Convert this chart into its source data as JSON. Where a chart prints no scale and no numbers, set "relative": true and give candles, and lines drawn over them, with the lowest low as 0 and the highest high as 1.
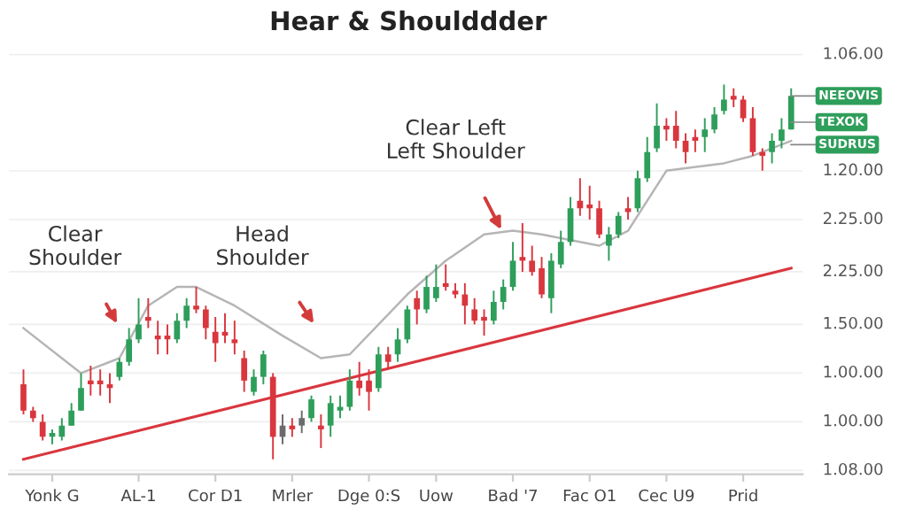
{
  "chart_data": {
    "type": "candlestick",
    "title": "Hear & Shoulddder",
    "relative": true,
    "categories": [
      null,
      null,
      null,
      "Yonk G",
      null,
      null,
      null,
      null,
      null,
      null,
      null,
      null,
      "AL-1",
      null,
      null,
      null,
      null,
      null,
      null,
      null,
      "Cor D1",
      null,
      null,
      null,
      null,
      null,
      null,
      null,
      "Mrler",
      null,
      null,
      null,
      null,
      null,
      null,
      null,
      "Dge 0:S",
      null,
      null,
      null,
      null,
      null,
      null,
      "Uow",
      null,
      null,
      null,
      null,
      null,
      null,
      null,
      "Bad '7",
      null,
      null,
      null,
      null,
      null,
      null,
      null,
      "Fac O1",
      null,
      null,
      null,
      null,
      null,
      null,
      null,
      "Cec U9",
      null,
      null,
      null,
      null,
      null,
      null,
      null,
      "Prid",
      null,
      null,
      null,
      null,
      null
    ],
    "ohlc": [
      [
        0.2,
        0.24,
        0.12,
        0.13
      ],
      [
        0.13,
        0.14,
        0.1,
        0.11
      ],
      [
        0.1,
        0.12,
        0.05,
        0.06
      ],
      [
        0.06,
        0.08,
        0.04,
        0.07
      ],
      [
        0.06,
        0.11,
        0.05,
        0.09
      ],
      [
        0.09,
        0.15,
        0.09,
        0.13
      ],
      [
        0.13,
        0.23,
        0.13,
        0.19
      ],
      [
        0.21,
        0.25,
        0.17,
        0.2
      ],
      [
        0.21,
        0.24,
        0.17,
        0.2
      ],
      [
        0.2,
        0.23,
        0.15,
        0.19
      ],
      [
        0.22,
        0.27,
        0.21,
        0.26
      ],
      [
        0.26,
        0.35,
        0.25,
        0.32
      ],
      [
        0.32,
        0.43,
        0.31,
        0.36
      ],
      [
        0.38,
        0.43,
        0.35,
        0.37
      ],
      [
        0.33,
        0.37,
        0.28,
        0.32
      ],
      [
        0.33,
        0.36,
        0.28,
        0.32
      ],
      [
        0.32,
        0.39,
        0.31,
        0.37
      ],
      [
        0.37,
        0.43,
        0.35,
        0.41
      ],
      [
        0.41,
        0.46,
        0.39,
        0.4
      ],
      [
        0.4,
        0.41,
        0.32,
        0.35
      ],
      [
        0.34,
        0.38,
        0.26,
        0.31
      ],
      [
        0.34,
        0.39,
        0.31,
        0.33
      ],
      [
        0.32,
        0.37,
        0.28,
        0.31
      ],
      [
        0.27,
        0.29,
        0.18,
        0.21
      ],
      [
        0.18,
        0.24,
        0.17,
        0.22
      ],
      [
        0.22,
        0.29,
        0.2,
        0.28
      ],
      [
        0.22,
        0.23,
        0.0,
        0.06
      ],
      [
        0.06,
        0.12,
        0.04,
        0.09
      ],
      [
        0.09,
        0.11,
        0.06,
        0.08
      ],
      [
        0.09,
        0.13,
        0.07,
        0.11
      ],
      [
        0.11,
        0.17,
        0.1,
        0.16
      ],
      [
        0.09,
        0.12,
        0.03,
        0.08
      ],
      [
        0.09,
        0.17,
        0.06,
        0.15
      ],
      [
        0.13,
        0.17,
        0.11,
        0.14
      ],
      [
        0.14,
        0.24,
        0.13,
        0.21
      ],
      [
        0.21,
        0.26,
        0.17,
        0.19
      ],
      [
        0.21,
        0.24,
        0.13,
        0.18
      ],
      [
        0.19,
        0.3,
        0.18,
        0.28
      ],
      [
        0.28,
        0.3,
        0.24,
        0.26
      ],
      [
        0.28,
        0.35,
        0.26,
        0.32
      ],
      [
        0.32,
        0.41,
        0.31,
        0.4
      ],
      [
        0.43,
        0.45,
        0.36,
        0.4
      ],
      [
        0.4,
        0.49,
        0.39,
        0.46
      ],
      [
        0.43,
        0.52,
        0.42,
        0.46
      ],
      [
        0.47,
        0.52,
        0.45,
        0.46
      ],
      [
        0.45,
        0.47,
        0.43,
        0.44
      ],
      [
        0.44,
        0.47,
        0.36,
        0.41
      ],
      [
        0.4,
        0.43,
        0.36,
        0.37
      ],
      [
        0.38,
        0.4,
        0.33,
        0.37
      ],
      [
        0.37,
        0.45,
        0.36,
        0.42
      ],
      [
        0.42,
        0.48,
        0.4,
        0.46
      ],
      [
        0.46,
        0.58,
        0.45,
        0.53
      ],
      [
        0.54,
        0.63,
        0.5,
        0.53
      ],
      [
        0.53,
        0.57,
        0.49,
        0.5
      ],
      [
        0.51,
        0.54,
        0.43,
        0.44
      ],
      [
        0.43,
        0.55,
        0.39,
        0.53
      ],
      [
        0.52,
        0.61,
        0.51,
        0.58
      ],
      [
        0.58,
        0.7,
        0.57,
        0.67
      ],
      [
        0.69,
        0.75,
        0.65,
        0.67
      ],
      [
        0.68,
        0.73,
        0.64,
        0.67
      ],
      [
        0.67,
        0.69,
        0.59,
        0.6
      ],
      [
        0.57,
        0.62,
        0.53,
        0.6
      ],
      [
        0.6,
        0.66,
        0.59,
        0.65
      ],
      [
        0.67,
        0.7,
        0.64,
        0.66
      ],
      [
        0.67,
        0.77,
        0.66,
        0.75
      ],
      [
        0.75,
        0.86,
        0.74,
        0.82
      ],
      [
        0.83,
        0.95,
        0.82,
        0.89
      ],
      [
        0.89,
        0.91,
        0.85,
        0.88
      ],
      [
        0.89,
        0.93,
        0.83,
        0.85
      ],
      [
        0.85,
        0.87,
        0.79,
        0.82
      ],
      [
        0.86,
        0.88,
        0.82,
        0.85
      ],
      [
        0.86,
        0.91,
        0.82,
        0.88
      ],
      [
        0.88,
        0.94,
        0.87,
        0.92
      ],
      [
        0.93,
        1.0,
        0.92,
        0.96
      ],
      [
        0.97,
        0.99,
        0.94,
        0.96
      ],
      [
        0.96,
        0.97,
        0.9,
        0.91
      ],
      [
        0.91,
        0.94,
        0.81,
        0.82
      ],
      [
        0.82,
        0.83,
        0.77,
        0.81
      ],
      [
        0.82,
        0.87,
        0.79,
        0.85
      ],
      [
        0.85,
        0.91,
        0.83,
        0.88
      ],
      [
        0.88,
        0.99,
        0.88,
        0.97
      ]
    ],
    "colors": [
      "#d9363e",
      "#d9363e",
      "#d9363e",
      "#2e9e5b",
      "#2e9e5b",
      "#2e9e5b",
      "#2e9e5b",
      "#d9363e",
      "#d9363e",
      "#d9363e",
      "#2e9e5b",
      "#2e9e5b",
      "#2e9e5b",
      "#d9363e",
      "#d9363e",
      "#d9363e",
      "#2e9e5b",
      "#2e9e5b",
      "#d9363e",
      "#d9363e",
      "#d9363e",
      "#d9363e",
      "#d9363e",
      "#d9363e",
      "#2e9e5b",
      "#2e9e5b",
      "#d9363e",
      "#6b6b6b",
      "#d9363e",
      "#6b6b6b",
      "#2e9e5b",
      "#d9363e",
      "#2e9e5b",
      "#2e9e5b",
      "#2e9e5b",
      "#d9363e",
      "#d9363e",
      "#2e9e5b",
      "#d9363e",
      "#2e9e5b",
      "#2e9e5b",
      "#d9363e",
      "#2e9e5b",
      "#2e9e5b",
      "#d9363e",
      "#d9363e",
      "#d9363e",
      "#d9363e",
      "#d9363e",
      "#2e9e5b",
      "#2e9e5b",
      "#2e9e5b",
      "#d9363e",
      "#d9363e",
      "#d9363e",
      "#2e9e5b",
      "#2e9e5b",
      "#2e9e5b",
      "#d9363e",
      "#d9363e",
      "#d9363e",
      "#2e9e5b",
      "#2e9e5b",
      "#d9363e",
      "#2e9e5b",
      "#2e9e5b",
      "#2e9e5b",
      "#d9363e",
      "#d9363e",
      "#d9363e",
      "#d9363e",
      "#2e9e5b",
      "#2e9e5b",
      "#2e9e5b",
      "#d9363e",
      "#d9363e",
      "#d9363e",
      "#d9363e",
      "#2e9e5b",
      "#2e9e5b",
      "#2e9e5b"
    ],
    "series": [
      {
        "type": "line",
        "color": "#b5b5b5",
        "values": [
          0.35,
          null,
          null,
          null,
          null,
          null,
          0.23,
          null,
          null,
          null,
          0.27,
          null,
          null,
          0.41,
          null,
          null,
          0.46,
          null,
          0.46,
          null,
          null,
          null,
          0.41,
          null,
          null,
          null,
          null,
          0.33,
          null,
          null,
          null,
          0.27,
          null,
          null,
          0.28,
          null,
          null,
          null,
          null,
          null,
          0.44,
          null,
          null,
          null,
          0.53,
          null,
          null,
          null,
          0.6,
          null,
          null,
          0.61,
          null,
          null,
          0.6,
          null,
          0.59,
          null,
          null,
          null,
          0.57,
          null,
          null,
          0.61,
          null,
          null,
          null,
          0.77,
          null,
          null,
          null,
          null,
          null,
          0.79,
          null,
          null,
          0.81,
          null,
          null,
          null,
          0.85
        ]
      },
      {
        "type": "line",
        "color": "#d9363e",
        "values": [
          0.0,
          null,
          null,
          null,
          null,
          null,
          null,
          null,
          null,
          null,
          null,
          null,
          null,
          null,
          null,
          null,
          null,
          null,
          null,
          null,
          null,
          null,
          null,
          null,
          null,
          null,
          null,
          null,
          null,
          null,
          null,
          null,
          null,
          null,
          null,
          null,
          null,
          null,
          null,
          null,
          null,
          null,
          null,
          null,
          null,
          null,
          null,
          null,
          null,
          null,
          null,
          null,
          null,
          null,
          null,
          null,
          null,
          null,
          null,
          null,
          null,
          null,
          null,
          null,
          null,
          null,
          null,
          null,
          null,
          null,
          null,
          null,
          null,
          null,
          null,
          null,
          null,
          null,
          null,
          null,
          0.51
        ]
      }
    ],
    "annotations": [
      "Clear\nShoulder",
      "Head\nShoulder",
      "Clear Left\nLeft Shoulder",
      "NEEOVIS",
      "TEXOK",
      "SUDRUS",
      "1.06.00",
      "1.20.00",
      "2.25.00",
      "2.25.00",
      "1.50.00",
      "1.00.00",
      "1.00.00",
      "1.08.00"
    ]
  }
}
